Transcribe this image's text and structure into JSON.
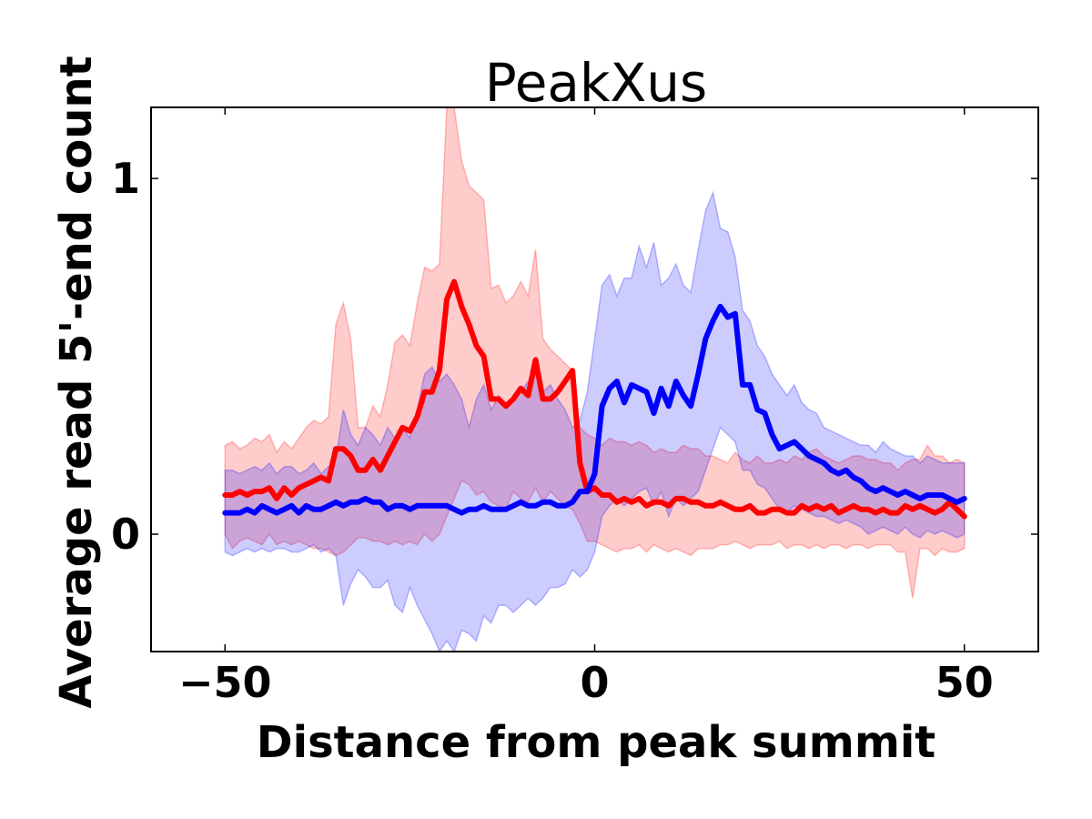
{
  "chart_data": {
    "type": "line",
    "title": "PeakXus",
    "xlabel": "Distance from peak summit",
    "ylabel": "Average read 5'-end count",
    "xlim": [
      -60,
      60
    ],
    "ylim": [
      -0.33,
      1.2
    ],
    "xticks": [
      -50,
      0,
      50
    ],
    "xtick_labels": [
      "−50",
      "0",
      "50"
    ],
    "yticks": [
      0,
      1
    ],
    "ytick_labels": [
      "0",
      "1"
    ],
    "grid": false,
    "legend": "none",
    "x_start": -50,
    "x_step": 1,
    "series": [
      {
        "color": "#ff0000",
        "band_color": "#ff0000",
        "mean": [
          0.11,
          0.11,
          0.12,
          0.11,
          0.12,
          0.12,
          0.13,
          0.1,
          0.13,
          0.11,
          0.13,
          0.14,
          0.15,
          0.16,
          0.15,
          0.24,
          0.24,
          0.22,
          0.18,
          0.18,
          0.21,
          0.18,
          0.22,
          0.26,
          0.3,
          0.29,
          0.33,
          0.4,
          0.4,
          0.46,
          0.66,
          0.71,
          0.64,
          0.59,
          0.53,
          0.5,
          0.38,
          0.38,
          0.36,
          0.38,
          0.41,
          0.39,
          0.49,
          0.38,
          0.38,
          0.4,
          0.43,
          0.46,
          0.2,
          0.12,
          0.13,
          0.11,
          0.11,
          0.09,
          0.1,
          0.09,
          0.1,
          0.08,
          0.09,
          0.09,
          0.08,
          0.1,
          0.1,
          0.09,
          0.09,
          0.08,
          0.08,
          0.09,
          0.08,
          0.07,
          0.07,
          0.08,
          0.06,
          0.06,
          0.07,
          0.07,
          0.06,
          0.06,
          0.08,
          0.07,
          0.08,
          0.07,
          0.08,
          0.06,
          0.07,
          0.08,
          0.07,
          0.07,
          0.06,
          0.07,
          0.06,
          0.06,
          0.08,
          0.07,
          0.08,
          0.07,
          0.06,
          0.07,
          0.09,
          0.07,
          0.05
        ],
        "upper": [
          0.25,
          0.26,
          0.24,
          0.25,
          0.27,
          0.26,
          0.28,
          0.23,
          0.26,
          0.24,
          0.27,
          0.3,
          0.32,
          0.31,
          0.33,
          0.59,
          0.65,
          0.55,
          0.3,
          0.3,
          0.36,
          0.33,
          0.42,
          0.54,
          0.56,
          0.53,
          0.65,
          0.75,
          0.74,
          0.76,
          1.2,
          1.2,
          1.05,
          0.98,
          0.96,
          0.94,
          0.69,
          0.7,
          0.65,
          0.67,
          0.71,
          0.67,
          0.8,
          0.55,
          0.52,
          0.5,
          0.48,
          0.46,
          0.3,
          0.28,
          0.27,
          0.25,
          0.27,
          0.26,
          0.26,
          0.25,
          0.26,
          0.25,
          0.23,
          0.24,
          0.23,
          0.23,
          0.25,
          0.24,
          0.24,
          0.22,
          0.22,
          0.21,
          0.2,
          0.23,
          0.21,
          0.2,
          0.22,
          0.2,
          0.2,
          0.21,
          0.2,
          0.22,
          0.21,
          0.23,
          0.24,
          0.22,
          0.21,
          0.2,
          0.21,
          0.22,
          0.22,
          0.21,
          0.21,
          0.2,
          0.2,
          0.18,
          0.2,
          0.21,
          0.21,
          0.25,
          0.22,
          0.22,
          0.2,
          0.21,
          0.2
        ],
        "lower": [
          0.0,
          -0.04,
          -0.02,
          -0.01,
          -0.02,
          -0.03,
          0.0,
          -0.03,
          -0.02,
          -0.03,
          -0.02,
          -0.03,
          -0.04,
          -0.04,
          -0.05,
          -0.06,
          -0.05,
          -0.03,
          -0.01,
          -0.01,
          -0.02,
          -0.02,
          -0.03,
          -0.02,
          -0.03,
          -0.02,
          -0.03,
          0.0,
          -0.02,
          0.0,
          0.05,
          0.1,
          0.15,
          0.14,
          0.11,
          0.12,
          0.09,
          0.08,
          0.07,
          0.12,
          0.1,
          0.09,
          0.13,
          0.09,
          0.12,
          0.1,
          0.08,
          0.07,
          0.03,
          -0.02,
          -0.02,
          -0.03,
          -0.04,
          -0.05,
          -0.04,
          -0.04,
          -0.03,
          -0.05,
          -0.03,
          -0.04,
          -0.05,
          -0.04,
          -0.05,
          -0.06,
          -0.04,
          -0.04,
          -0.04,
          -0.03,
          -0.03,
          -0.02,
          -0.03,
          -0.04,
          -0.03,
          -0.03,
          -0.03,
          -0.02,
          -0.04,
          -0.03,
          -0.03,
          -0.04,
          -0.03,
          -0.04,
          -0.03,
          -0.03,
          -0.04,
          -0.03,
          -0.03,
          -0.04,
          -0.03,
          -0.03,
          -0.03,
          -0.05,
          -0.05,
          -0.18,
          -0.04,
          -0.04,
          -0.06,
          -0.04,
          -0.05,
          -0.05,
          -0.04
        ]
      },
      {
        "color": "#0000ff",
        "band_color": "#0000ff",
        "mean": [
          0.06,
          0.06,
          0.06,
          0.07,
          0.06,
          0.08,
          0.07,
          0.06,
          0.07,
          0.08,
          0.06,
          0.08,
          0.07,
          0.07,
          0.08,
          0.09,
          0.08,
          0.09,
          0.09,
          0.1,
          0.09,
          0.09,
          0.07,
          0.08,
          0.08,
          0.07,
          0.08,
          0.08,
          0.08,
          0.08,
          0.08,
          0.07,
          0.06,
          0.07,
          0.07,
          0.08,
          0.07,
          0.07,
          0.07,
          0.08,
          0.09,
          0.08,
          0.08,
          0.09,
          0.09,
          0.08,
          0.08,
          0.09,
          0.12,
          0.12,
          0.17,
          0.36,
          0.41,
          0.43,
          0.37,
          0.42,
          0.41,
          0.4,
          0.34,
          0.41,
          0.36,
          0.43,
          0.39,
          0.36,
          0.45,
          0.55,
          0.6,
          0.64,
          0.61,
          0.62,
          0.42,
          0.42,
          0.35,
          0.34,
          0.28,
          0.24,
          0.25,
          0.26,
          0.24,
          0.22,
          0.21,
          0.2,
          0.18,
          0.17,
          0.18,
          0.16,
          0.15,
          0.13,
          0.12,
          0.13,
          0.12,
          0.11,
          0.12,
          0.11,
          0.1,
          0.11,
          0.11,
          0.11,
          0.1,
          0.09,
          0.1
        ],
        "upper": [
          0.18,
          0.18,
          0.17,
          0.18,
          0.19,
          0.18,
          0.2,
          0.17,
          0.19,
          0.19,
          0.17,
          0.18,
          0.2,
          0.17,
          0.19,
          0.21,
          0.35,
          0.28,
          0.25,
          0.3,
          0.28,
          0.25,
          0.3,
          0.27,
          0.3,
          0.27,
          0.35,
          0.45,
          0.47,
          0.43,
          0.45,
          0.42,
          0.38,
          0.3,
          0.38,
          0.42,
          0.35,
          0.39,
          0.36,
          0.38,
          0.4,
          0.43,
          0.45,
          0.4,
          0.42,
          0.38,
          0.35,
          0.3,
          0.32,
          0.4,
          0.55,
          0.7,
          0.73,
          0.67,
          0.72,
          0.72,
          0.81,
          0.75,
          0.82,
          0.7,
          0.72,
          0.76,
          0.7,
          0.68,
          0.8,
          0.91,
          0.96,
          0.86,
          0.85,
          0.78,
          0.63,
          0.6,
          0.53,
          0.5,
          0.45,
          0.42,
          0.39,
          0.42,
          0.37,
          0.35,
          0.34,
          0.3,
          0.29,
          0.28,
          0.27,
          0.26,
          0.25,
          0.25,
          0.23,
          0.26,
          0.24,
          0.23,
          0.22,
          0.22,
          0.2,
          0.22,
          0.21,
          0.2,
          0.2,
          0.2,
          0.2
        ],
        "lower": [
          -0.05,
          -0.06,
          -0.05,
          -0.04,
          -0.05,
          -0.04,
          -0.05,
          -0.04,
          -0.04,
          -0.05,
          -0.05,
          -0.04,
          -0.03,
          -0.05,
          -0.04,
          -0.06,
          -0.2,
          -0.14,
          -0.1,
          -0.12,
          -0.15,
          -0.15,
          -0.13,
          -0.2,
          -0.22,
          -0.15,
          -0.2,
          -0.24,
          -0.28,
          -0.35,
          -0.3,
          -0.33,
          -0.27,
          -0.28,
          -0.3,
          -0.23,
          -0.25,
          -0.2,
          -0.2,
          -0.22,
          -0.2,
          -0.18,
          -0.2,
          -0.18,
          -0.15,
          -0.15,
          -0.14,
          -0.1,
          -0.12,
          -0.1,
          -0.05,
          0.05,
          0.08,
          0.1,
          0.08,
          0.1,
          0.12,
          0.13,
          0.08,
          0.12,
          0.05,
          0.1,
          0.08,
          0.1,
          0.12,
          0.18,
          0.24,
          0.3,
          0.28,
          0.26,
          0.18,
          0.18,
          0.14,
          0.13,
          0.1,
          0.07,
          0.06,
          0.08,
          0.07,
          0.06,
          0.05,
          0.05,
          0.04,
          0.03,
          0.04,
          0.03,
          0.02,
          0.0,
          0.01,
          0.02,
          0.01,
          0.0,
          0.02,
          0.0,
          -0.01,
          0.01,
          0.0,
          0.01,
          0.0,
          -0.01,
          0.0
        ]
      }
    ]
  }
}
